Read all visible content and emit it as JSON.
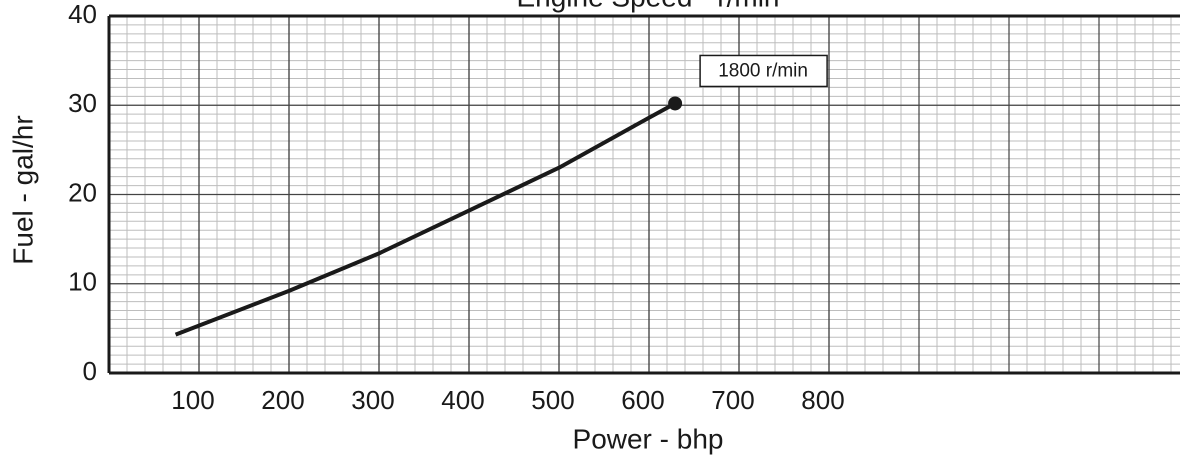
{
  "chart_data": {
    "type": "line",
    "title": "Engine Speed - r/min",
    "x_label": "Power - bhp",
    "y_label": "Fuel - gal/hr",
    "xlim": [
      0,
      1190
    ],
    "ylim": [
      0,
      40
    ],
    "xticks": [
      100,
      200,
      300,
      400,
      500,
      600,
      700,
      800
    ],
    "yticks": [
      0,
      10,
      20,
      30,
      40
    ],
    "grid": true,
    "end_marker": true,
    "series": [
      {
        "name": "1800 r/min",
        "color": "#1a1a1a",
        "x": [
          74,
          200,
          300,
          400,
          500,
          600,
          629
        ],
        "values": [
          4.3,
          9.2,
          13.4,
          18.2,
          23.0,
          28.6,
          30.2
        ]
      }
    ]
  }
}
